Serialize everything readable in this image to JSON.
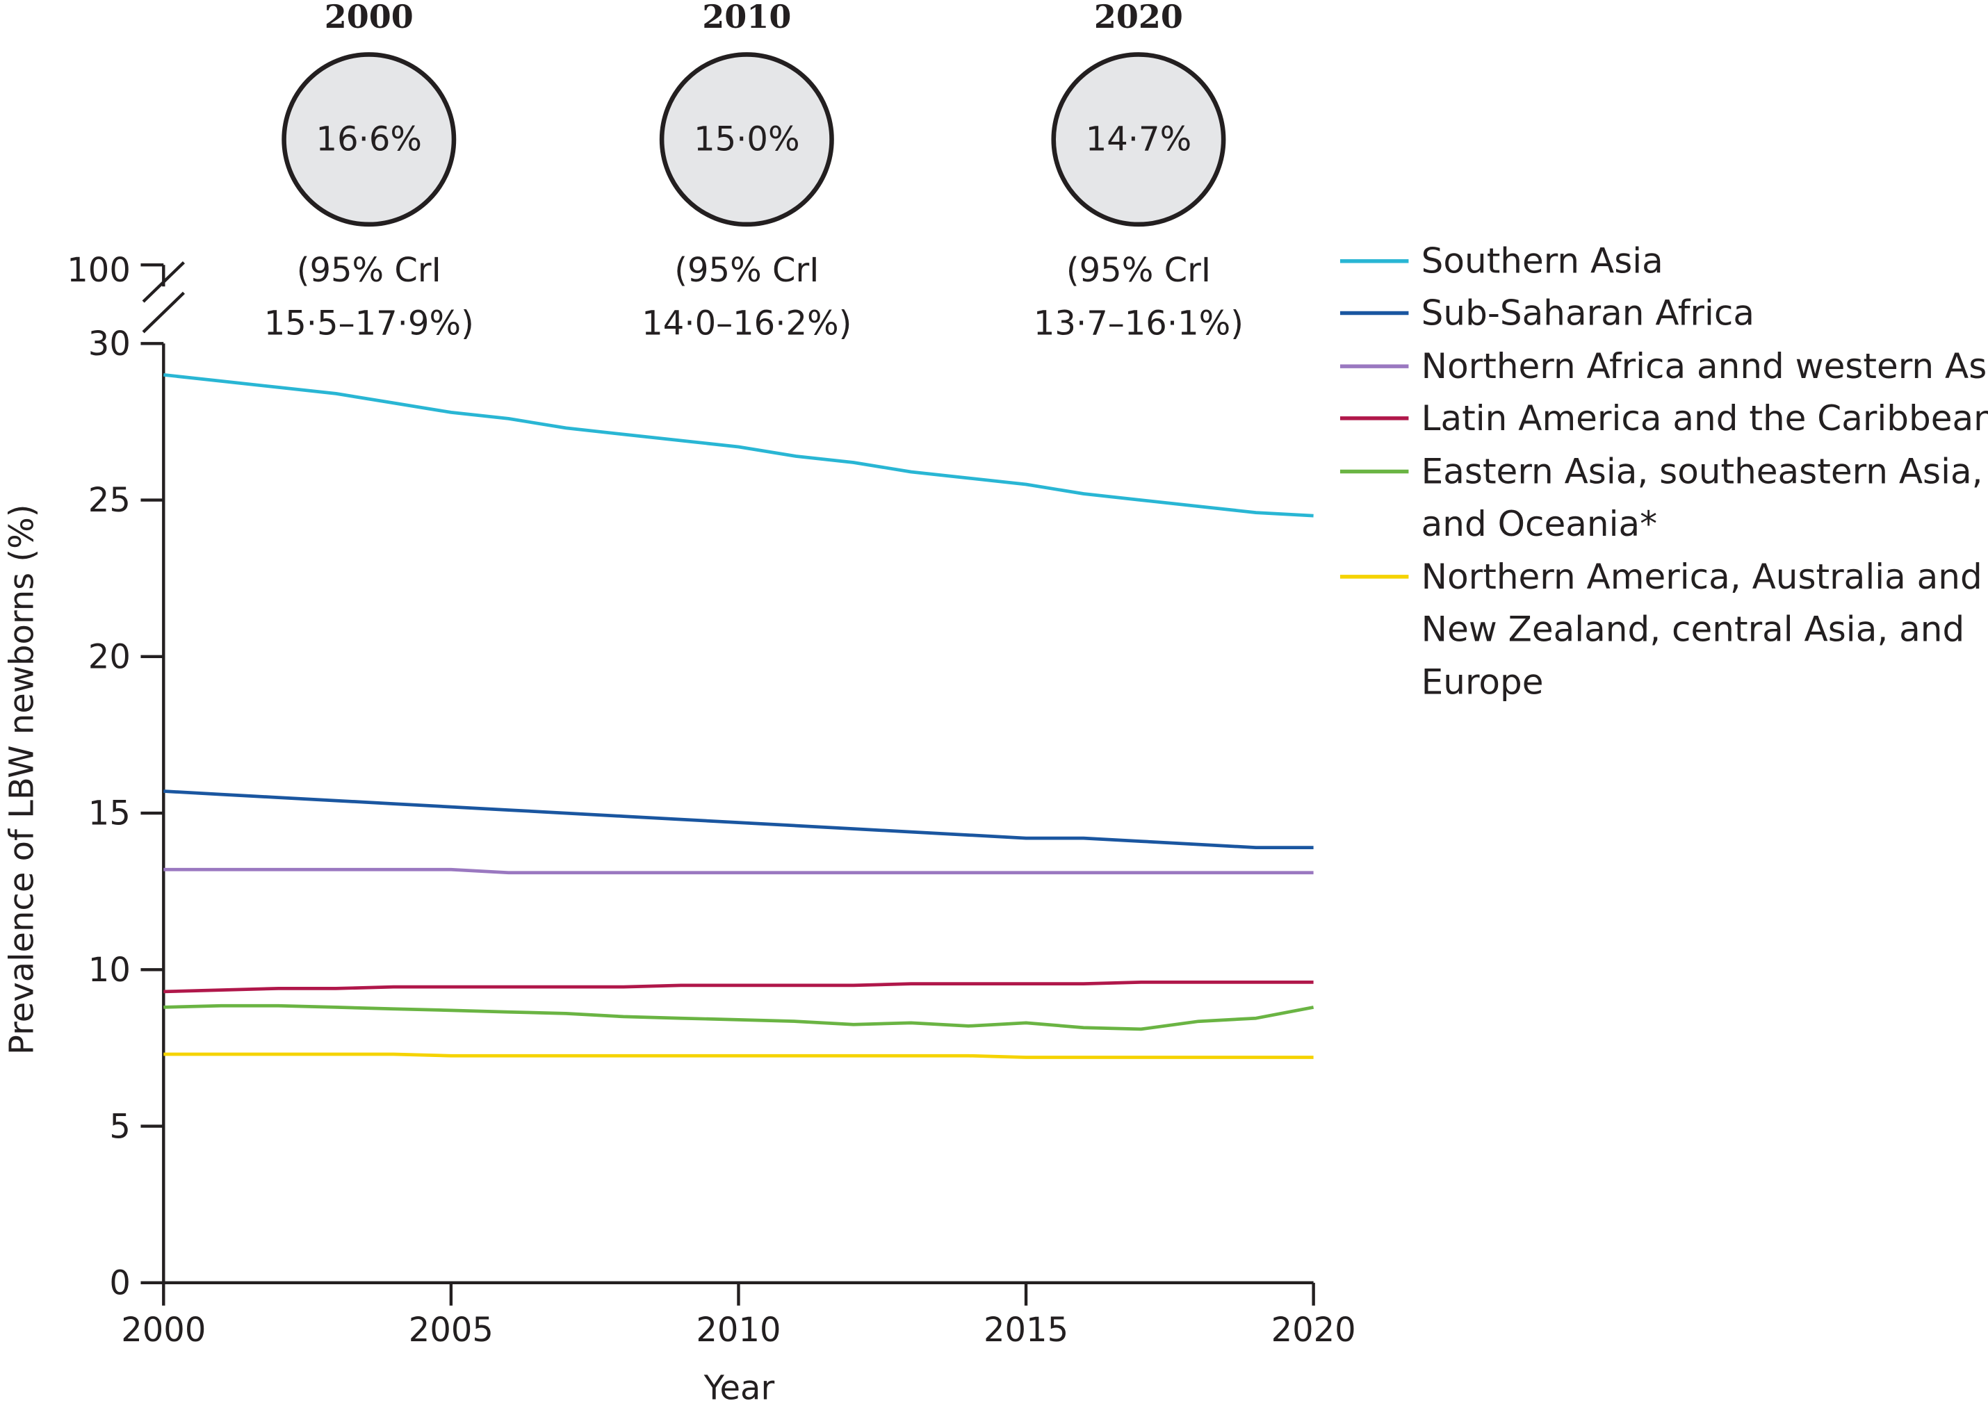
{
  "summary_circles": [
    {
      "year": "2000",
      "value": "16·6%",
      "cri_line1": "(95% CrI",
      "cri_line2": "15·5–17·9%)"
    },
    {
      "year": "2010",
      "value": "15·0%",
      "cri_line1": "(95% CrI",
      "cri_line2": "14·0–16·2%)"
    },
    {
      "year": "2020",
      "value": "14·7%",
      "cri_line1": "(95% CrI",
      "cri_line2": "13·7–16·1%)"
    }
  ],
  "chart_data": {
    "type": "line",
    "xlabel": "Year",
    "ylabel": "Prevalence of LBW newborns (%)",
    "xlim": [
      2000,
      2020
    ],
    "ylim": [
      0,
      30
    ],
    "y_break": {
      "lower": 30,
      "upper": 100
    },
    "x_ticks": [
      "2000",
      "2005",
      "2010",
      "2015",
      "2020"
    ],
    "y_ticks": [
      "0",
      "5",
      "10",
      "15",
      "20",
      "25",
      "30"
    ],
    "y_break_tick": "100",
    "grid": false,
    "legend_position": "right",
    "x": [
      2000,
      2001,
      2002,
      2003,
      2004,
      2005,
      2006,
      2007,
      2008,
      2009,
      2010,
      2011,
      2012,
      2013,
      2014,
      2015,
      2016,
      2017,
      2018,
      2019,
      2020
    ],
    "series": [
      {
        "name": "Southern Asia",
        "color": "#29b6d4",
        "values": [
          29.0,
          28.8,
          28.6,
          28.4,
          28.1,
          27.8,
          27.6,
          27.3,
          27.1,
          26.9,
          26.7,
          26.4,
          26.2,
          25.9,
          25.7,
          25.5,
          25.2,
          25.0,
          24.8,
          24.6,
          24.5
        ]
      },
      {
        "name": "Sub-Saharan Africa",
        "color": "#1a56a0",
        "values": [
          15.7,
          15.6,
          15.5,
          15.4,
          15.3,
          15.2,
          15.1,
          15.0,
          14.9,
          14.8,
          14.7,
          14.6,
          14.5,
          14.4,
          14.3,
          14.2,
          14.2,
          14.1,
          14.0,
          13.9,
          13.9
        ]
      },
      {
        "name": "Northern Africa annd western Asia",
        "color": "#9a78c0",
        "values": [
          13.2,
          13.2,
          13.2,
          13.2,
          13.2,
          13.2,
          13.1,
          13.1,
          13.1,
          13.1,
          13.1,
          13.1,
          13.1,
          13.1,
          13.1,
          13.1,
          13.1,
          13.1,
          13.1,
          13.1,
          13.1
        ]
      },
      {
        "name": "Latin America and the Caribbean",
        "color": "#b0174a",
        "values": [
          9.3,
          9.35,
          9.4,
          9.4,
          9.45,
          9.45,
          9.45,
          9.45,
          9.45,
          9.5,
          9.5,
          9.5,
          9.5,
          9.55,
          9.55,
          9.55,
          9.55,
          9.6,
          9.6,
          9.6,
          9.6
        ]
      },
      {
        "name": "Eastern Asia, southeastern Asia, and Oceania*",
        "color": "#6ab443",
        "values": [
          8.8,
          8.85,
          8.85,
          8.8,
          8.75,
          8.7,
          8.65,
          8.6,
          8.5,
          8.45,
          8.4,
          8.35,
          8.25,
          8.3,
          8.2,
          8.3,
          8.15,
          8.1,
          8.35,
          8.45,
          8.8
        ]
      },
      {
        "name": "Northern America, Australia and New Zealand, central Asia, and Europe",
        "color": "#f5d300",
        "values": [
          7.3,
          7.3,
          7.3,
          7.3,
          7.3,
          7.25,
          7.25,
          7.25,
          7.25,
          7.25,
          7.25,
          7.25,
          7.25,
          7.25,
          7.25,
          7.2,
          7.2,
          7.2,
          7.2,
          7.2,
          7.2
        ]
      }
    ]
  },
  "legend": [
    {
      "lines": [
        "Southern Asia"
      ],
      "color": "#29b6d4"
    },
    {
      "lines": [
        "Sub-Saharan Africa"
      ],
      "color": "#1a56a0"
    },
    {
      "lines": [
        "Northern Africa annd western Asia"
      ],
      "color": "#9a78c0"
    },
    {
      "lines": [
        "Latin America and the Caribbean"
      ],
      "color": "#b0174a"
    },
    {
      "lines": [
        "Eastern Asia, southeastern Asia,",
        "and Oceania*"
      ],
      "color": "#6ab443"
    },
    {
      "lines": [
        "Northern America, Australia and",
        "New Zealand, central Asia, and",
        "Europe"
      ],
      "color": "#f5d300"
    }
  ]
}
